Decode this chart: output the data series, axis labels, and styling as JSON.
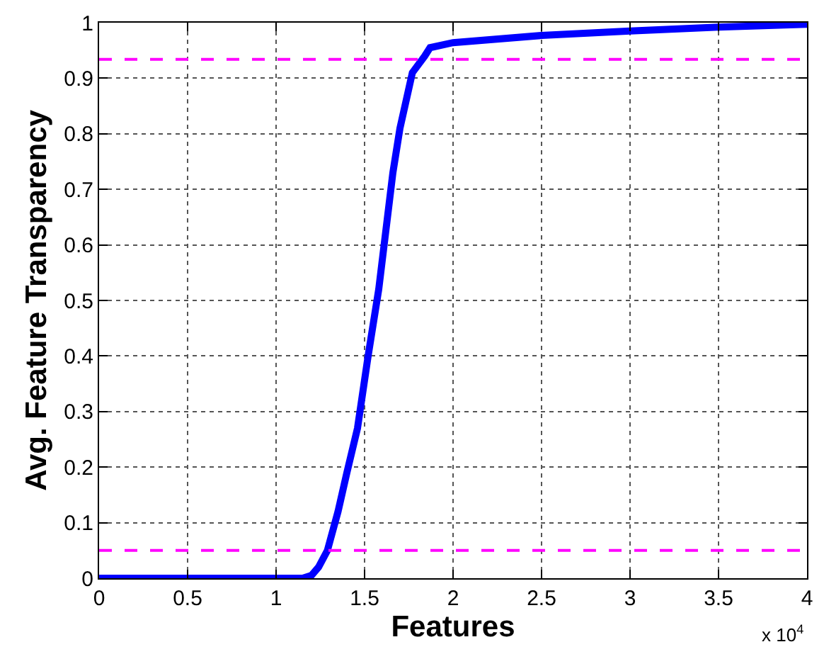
{
  "chart_data": {
    "type": "line",
    "xlabel": "Features",
    "ylabel": "Avg. Feature Transparency",
    "annotations": [
      "x 10$^{4}$"
    ],
    "x": [
      0,
      0.5,
      1,
      1.15,
      1.2,
      1.24,
      1.29,
      1.35,
      1.4,
      1.46,
      1.52,
      1.58,
      1.66,
      1.7,
      1.77,
      1.84,
      1.87,
      2,
      2.5,
      3,
      3.5,
      4
    ],
    "series": [
      {
        "color": "#0000ff",
        "values": [
          0,
          0,
          0,
          0,
          0.005,
          0.02,
          0.05,
          0.12,
          0.19,
          0.27,
          0.4,
          0.52,
          0.73,
          0.81,
          0.91,
          0.94,
          0.955,
          0.964,
          0.977,
          0.985,
          0.992,
          0.997
        ]
      }
    ],
    "xlim": [
      0,
      4
    ],
    "xticks": [
      0,
      0.5,
      1,
      1.5,
      2,
      2.5,
      3,
      3.5,
      4
    ],
    "ylim": [
      0,
      1
    ],
    "yticks": [
      0,
      0.1,
      0.2,
      0.3,
      0.4,
      0.5,
      0.6,
      0.7,
      0.8,
      0.9,
      1
    ],
    "ref_lines": [
      {
        "axis": "y",
        "value": 0.05,
        "color": "#ff00ff",
        "line_style": "dashed"
      },
      {
        "axis": "y",
        "value": 0.934,
        "color": "#ff00ff",
        "line_style": "dashed"
      }
    ],
    "grid": true,
    "marker": "none",
    "line_style": "solid"
  }
}
